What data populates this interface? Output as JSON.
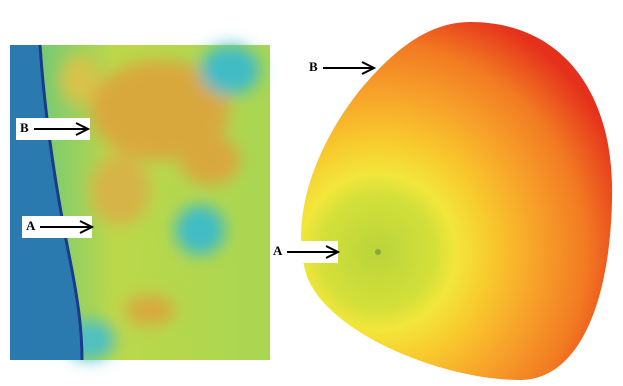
{
  "panels": [
    {
      "markers": [
        "B",
        "A"
      ]
    },
    {
      "markers": [
        "B",
        "A"
      ]
    }
  ]
}
